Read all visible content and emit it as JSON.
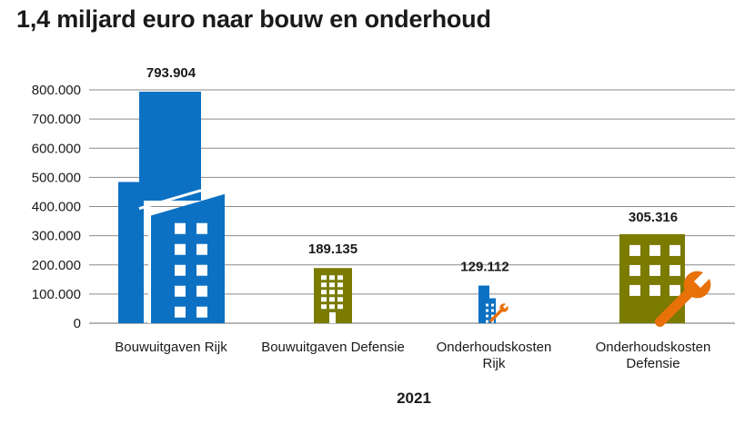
{
  "title": "1,4 miljard euro naar bouw en onderhoud",
  "chart_data": {
    "type": "bar",
    "title": "1,4 miljard euro naar bouw en onderhoud",
    "xlabel": "2021",
    "ylabel": "",
    "ylim": [
      0,
      800000
    ],
    "yticks": [
      {
        "value": 0,
        "label": "0"
      },
      {
        "value": 100000,
        "label": "100.000"
      },
      {
        "value": 200000,
        "label": "200.000"
      },
      {
        "value": 300000,
        "label": "300.000"
      },
      {
        "value": 400000,
        "label": "400.000"
      },
      {
        "value": 500000,
        "label": "500.000"
      },
      {
        "value": 600000,
        "label": "600.000"
      },
      {
        "value": 700000,
        "label": "700.000"
      },
      {
        "value": 800000,
        "label": "800.000"
      }
    ],
    "grid": true,
    "categories": [
      [
        "Bouwuitgaven Rijk"
      ],
      [
        "Bouwuitgaven Defensie"
      ],
      [
        "Onderhoudskosten",
        "Rijk"
      ],
      [
        "Onderhoudskosten",
        "Defensie"
      ]
    ],
    "values": [
      793904,
      189135,
      129112,
      305316
    ],
    "value_labels": [
      "793.904",
      "189.135",
      "129.112",
      "305.316"
    ],
    "icons": [
      "building-icon",
      "building-icon",
      "building-wrench-icon",
      "building-wrench-icon"
    ],
    "colors": {
      "rijk": "#0c71c3",
      "defensie": "#7b7b00",
      "wrench": "#e8710a",
      "window": "#ffffff",
      "grid": "#8a8a8a"
    },
    "bar_colors": [
      "#0c71c3",
      "#7b7b00",
      "#0c71c3",
      "#7b7b00"
    ]
  }
}
